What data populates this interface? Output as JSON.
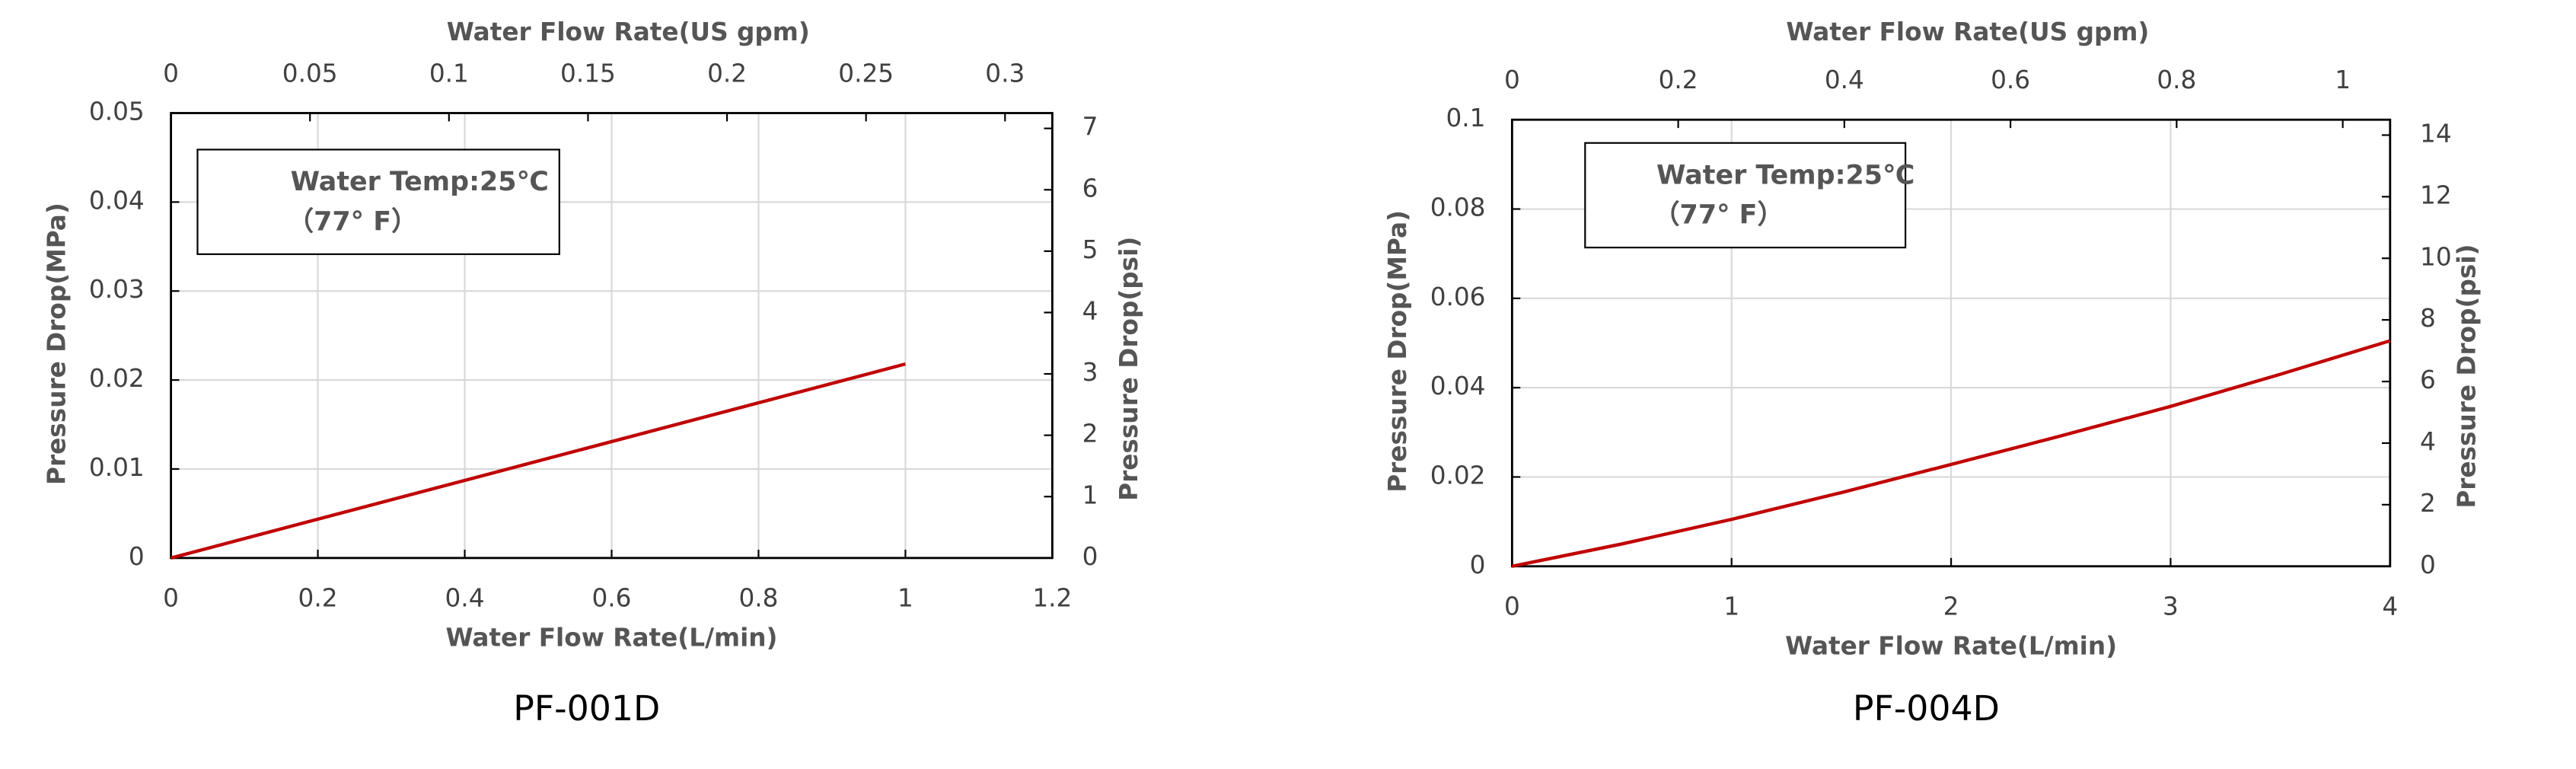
{
  "chart_data": [
    {
      "type": "line",
      "title": "PF-001D",
      "xlabel": "Water Flow Rate(L/min)",
      "ylabel": "Pressure Drop(MPa)",
      "x2label": "Water Flow Rate(US gpm)",
      "y2label": "Pressure Drop(psi)",
      "annotation": [
        "Water Temp:25℃",
        "（77°  F）"
      ],
      "x": [
        0,
        1
      ],
      "series": [
        {
          "color": "#c00000",
          "values": [
            0,
            0.0218
          ]
        }
      ],
      "xlim": [
        0,
        1.2
      ],
      "xticks": [
        0,
        0.2,
        0.4,
        0.6,
        0.8,
        1,
        1.2
      ],
      "ylim": [
        0,
        0.05
      ],
      "yticks": [
        0,
        0.01,
        0.02,
        0.03,
        0.04,
        0.05
      ],
      "x2lim": [
        0,
        0.317
      ],
      "x2ticks": [
        0,
        0.05,
        0.1,
        0.15,
        0.2,
        0.25,
        0.3
      ],
      "y2lim": [
        0,
        7.25
      ],
      "y2ticks": [
        0,
        1,
        2,
        3,
        4,
        5,
        6,
        7
      ],
      "grid": true
    },
    {
      "type": "line",
      "title": "PF-004D",
      "xlabel": "Water Flow Rate(L/min)",
      "ylabel": "Pressure Drop(MPa)",
      "x2label": "Water Flow Rate(US gpm)",
      "y2label": "Pressure Drop(psi)",
      "annotation": [
        "Water Temp:25℃",
        "（77°  F）"
      ],
      "x": [
        0,
        0.5,
        1,
        1.5,
        2,
        2.5,
        3,
        3.5,
        4
      ],
      "series": [
        {
          "color": "#c00000",
          "values": [
            0,
            0.005,
            0.0105,
            0.0165,
            0.0228,
            0.0292,
            0.0358,
            0.043,
            0.0505
          ]
        }
      ],
      "xlim": [
        0,
        4
      ],
      "xticks": [
        0,
        1,
        2,
        3,
        4
      ],
      "ylim": [
        0,
        0.1
      ],
      "yticks": [
        0,
        0.02,
        0.04,
        0.06,
        0.08,
        0.1
      ],
      "x2lim": [
        0,
        1.057
      ],
      "x2ticks": [
        0,
        0.2,
        0.4,
        0.6,
        0.8,
        1
      ],
      "y2lim": [
        0,
        14.5
      ],
      "y2ticks": [
        0,
        2,
        4,
        6,
        8,
        10,
        12,
        14
      ],
      "grid": true
    }
  ]
}
